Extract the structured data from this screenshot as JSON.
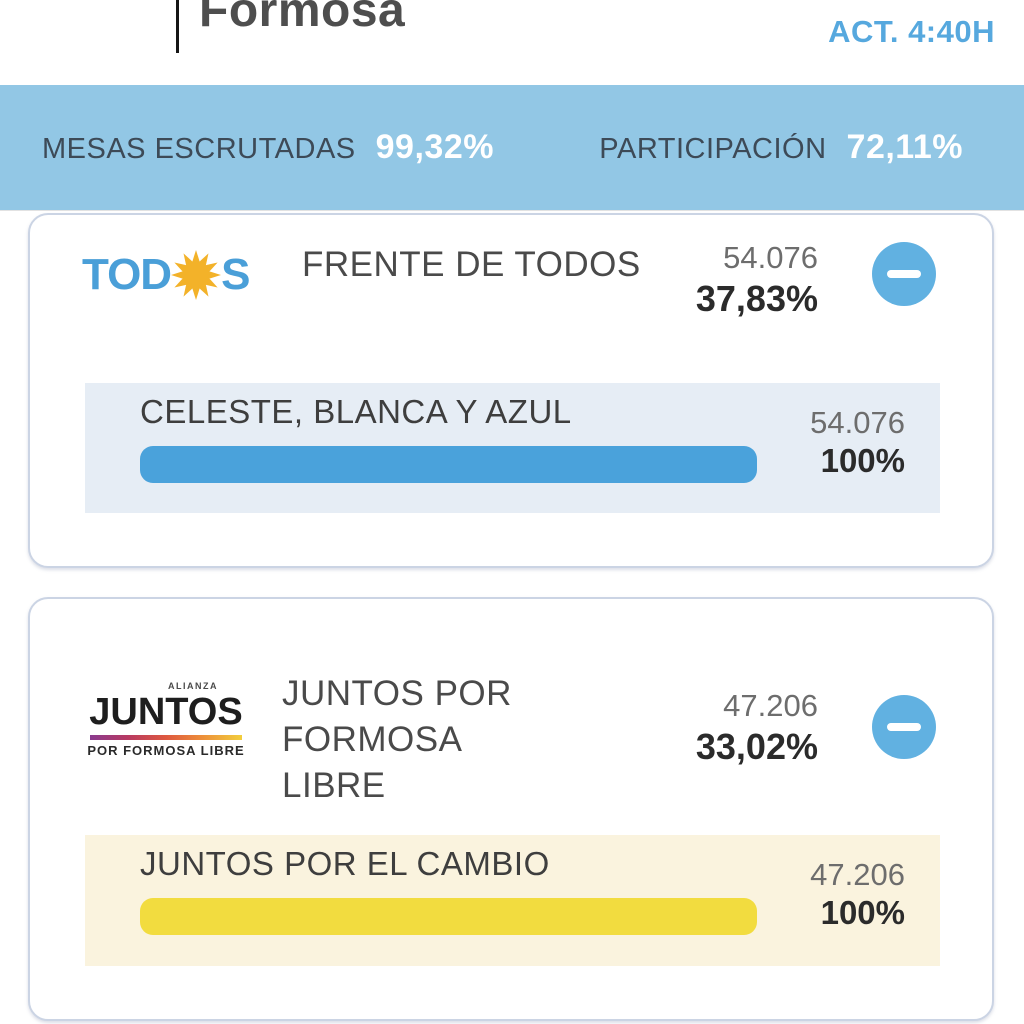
{
  "header": {
    "title": "Formosa",
    "update_label": "ACT. 4:40H"
  },
  "summary": {
    "mesas": {
      "label": "MESAS ESCRUTADAS",
      "value": "99,32%"
    },
    "participacion": {
      "label": "PARTICIPACIÓN",
      "value": "72,11%"
    }
  },
  "results": [
    {
      "logo": {
        "prefix": "TOD",
        "suffix": "S",
        "sun_icon": "sun-icon"
      },
      "name": "FRENTE DE TODOS",
      "votes": "54.076",
      "percent": "37,83%",
      "list": {
        "name": "CELESTE, BLANCA Y AZUL",
        "votes": "54.076",
        "percent": "100%",
        "bar_fill_pct": 100,
        "bar_color": "#4AA2DB",
        "panel_color": "#E6EDF5"
      }
    },
    {
      "logo": {
        "top": "ALIANZA",
        "main": "JUNTOS",
        "bottom": "POR FORMOSA LIBRE"
      },
      "name": "JUNTOS POR FORMOSA LIBRE",
      "votes": "47.206",
      "percent": "33,02%",
      "list": {
        "name": "JUNTOS POR EL CAMBIO",
        "votes": "47.206",
        "percent": "100%",
        "bar_fill_pct": 100,
        "bar_color": "#F2DC3F",
        "panel_color": "#FAF3DE"
      }
    }
  ],
  "colors": {
    "banner_bg": "#92C7E5",
    "banner_label": "#3D4A57",
    "banner_value": "#FFFFFF",
    "accent_blue": "#56A8DE",
    "minus_button": "#61B1E1",
    "card_border": "#CBD4E4",
    "todos_blue": "#4A9FD8",
    "sun_gold": "#F3B229"
  }
}
